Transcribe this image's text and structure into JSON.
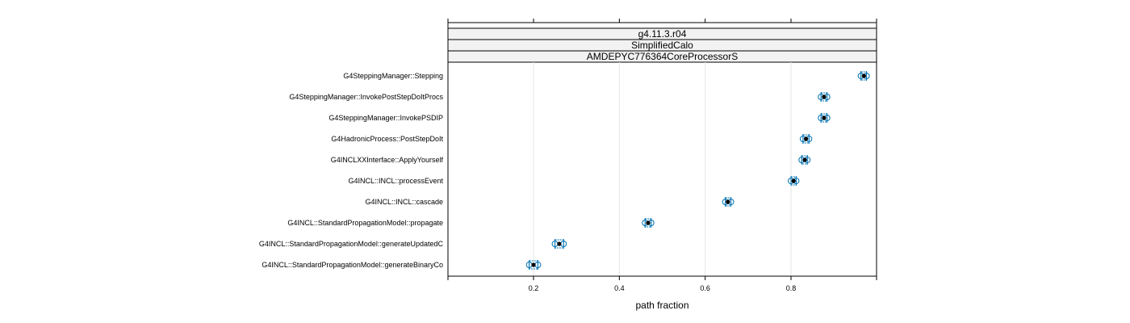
{
  "chart_data": {
    "type": "dotplot",
    "strips": [
      "g4.11.3.r04",
      "SimplifiedCalo",
      "AMDEPYC776364CoreProcessorS"
    ],
    "xlabel": "path fraction",
    "xlim": [
      0.0,
      1.0
    ],
    "x_ticks": [
      0.2,
      0.4,
      0.6,
      0.8
    ],
    "x_tick_labels": [
      "0.2",
      "0.4",
      "0.6",
      "0.8"
    ],
    "grid": true,
    "categories": [
      "G4SteppingManager::Stepping",
      "G4SteppingManager::InvokePostStepDoItProcs",
      "G4SteppingManager::InvokePSDIP",
      "G4HadronicProcess::PostStepDoIt",
      "G4INCLXXInterface::ApplyYourself",
      "G4INCL::INCL::processEvent",
      "G4INCL::INCL::cascade",
      "G4INCL::StandardPropagationModel::propagate",
      "G4INCL::StandardPropagationModel::generateUpdatedC",
      "G4INCL::StandardPropagationModel::generateBinaryCo"
    ],
    "values": [
      0.97,
      0.877,
      0.877,
      0.835,
      0.832,
      0.806,
      0.653,
      0.467,
      0.26,
      0.2
    ],
    "ranges": [
      [
        0.963,
        0.976
      ],
      [
        0.87,
        0.884
      ],
      [
        0.87,
        0.884
      ],
      [
        0.828,
        0.842
      ],
      [
        0.825,
        0.838
      ],
      [
        0.8,
        0.812
      ],
      [
        0.647,
        0.66
      ],
      [
        0.46,
        0.474
      ],
      [
        0.25,
        0.27
      ],
      [
        0.19,
        0.21
      ]
    ],
    "colors": {
      "point": "#000000",
      "range": "#0072B2",
      "strip_bg": "#f2f2f2",
      "grid": "#e6e6e6"
    }
  }
}
